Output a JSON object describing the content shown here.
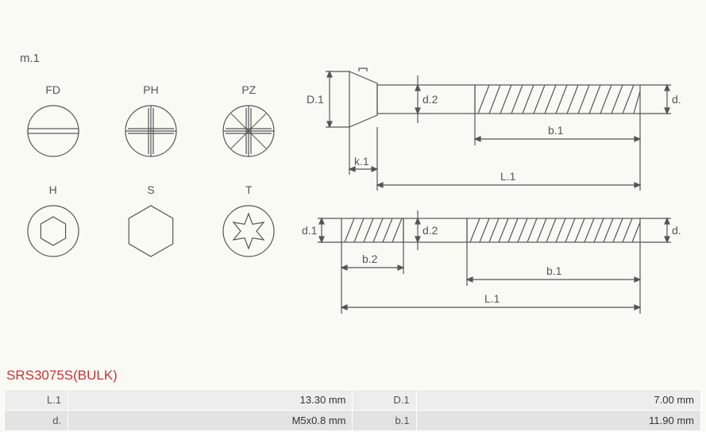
{
  "section_label": "m.1",
  "drives": [
    [
      {
        "code": "FD",
        "type": "slot"
      },
      {
        "code": "PH",
        "type": "phillips"
      },
      {
        "code": "PZ",
        "type": "pozidriv"
      }
    ],
    [
      {
        "code": "H",
        "type": "hex-socket"
      },
      {
        "code": "S",
        "type": "hex-ext"
      },
      {
        "code": "T",
        "type": "torx"
      }
    ]
  ],
  "drive_style": {
    "circle_radius": 32,
    "stroke": "#555555",
    "stroke_width": 1.2,
    "fill": "none"
  },
  "screw_diagram": {
    "stroke": "#555555",
    "stroke_width": 1.2,
    "labels": {
      "D1": "D.1",
      "d2": "d.2",
      "d": "d.",
      "k1": "k.1",
      "b1": "b.1",
      "L1": "L.1",
      "d1": "d.1",
      "b2": "b.2"
    },
    "label_fontsize": 14,
    "label_color": "#555555"
  },
  "part_number": "SRS3075S(BULK)",
  "specs": [
    [
      {
        "label": "L.1",
        "value": "13.30 mm"
      },
      {
        "label": "D.1",
        "value": "7.00 mm"
      }
    ],
    [
      {
        "label": "d.",
        "value": "M5x0.8 mm"
      },
      {
        "label": "b.1",
        "value": "11.90 mm"
      }
    ]
  ],
  "table_style": {
    "row_bg": [
      "#ededed",
      "#e3e3e3"
    ],
    "border": "#ffffff",
    "label_color": "#555555",
    "value_color": "#333333",
    "fontsize": 13
  }
}
